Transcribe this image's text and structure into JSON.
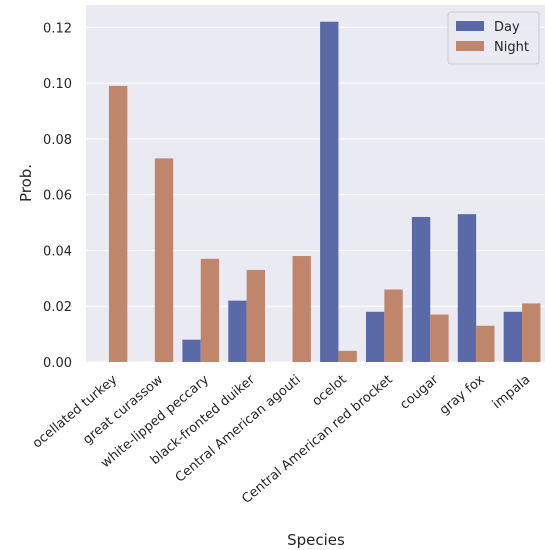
{
  "chart_data": {
    "type": "bar",
    "title": "",
    "xlabel": "Species",
    "ylabel": "Prob.",
    "ylim": [
      0,
      0.128
    ],
    "yticks": [
      "0.00",
      "0.02",
      "0.04",
      "0.06",
      "0.08",
      "0.10",
      "0.12"
    ],
    "grid": true,
    "legend_position": "top-right",
    "categories": [
      "ocellated turkey",
      "great curassow",
      "white-lipped peccary",
      "black-fronted duiker",
      "Central American agouti",
      "ocelot",
      "Central American red brocket",
      "cougar",
      "gray fox",
      "impala"
    ],
    "series": [
      {
        "name": "Day",
        "color": "#5a6aa8",
        "values": [
          0.0,
          0.0,
          0.008,
          0.022,
          0.0,
          0.122,
          0.018,
          0.052,
          0.053,
          0.018
        ]
      },
      {
        "name": "Night",
        "color": "#c0866b",
        "values": [
          0.099,
          0.073,
          0.037,
          0.033,
          0.038,
          0.004,
          0.026,
          0.017,
          0.013,
          0.021
        ]
      }
    ],
    "background_color": "#eaeaf2",
    "grid_color": "#ffffff"
  }
}
